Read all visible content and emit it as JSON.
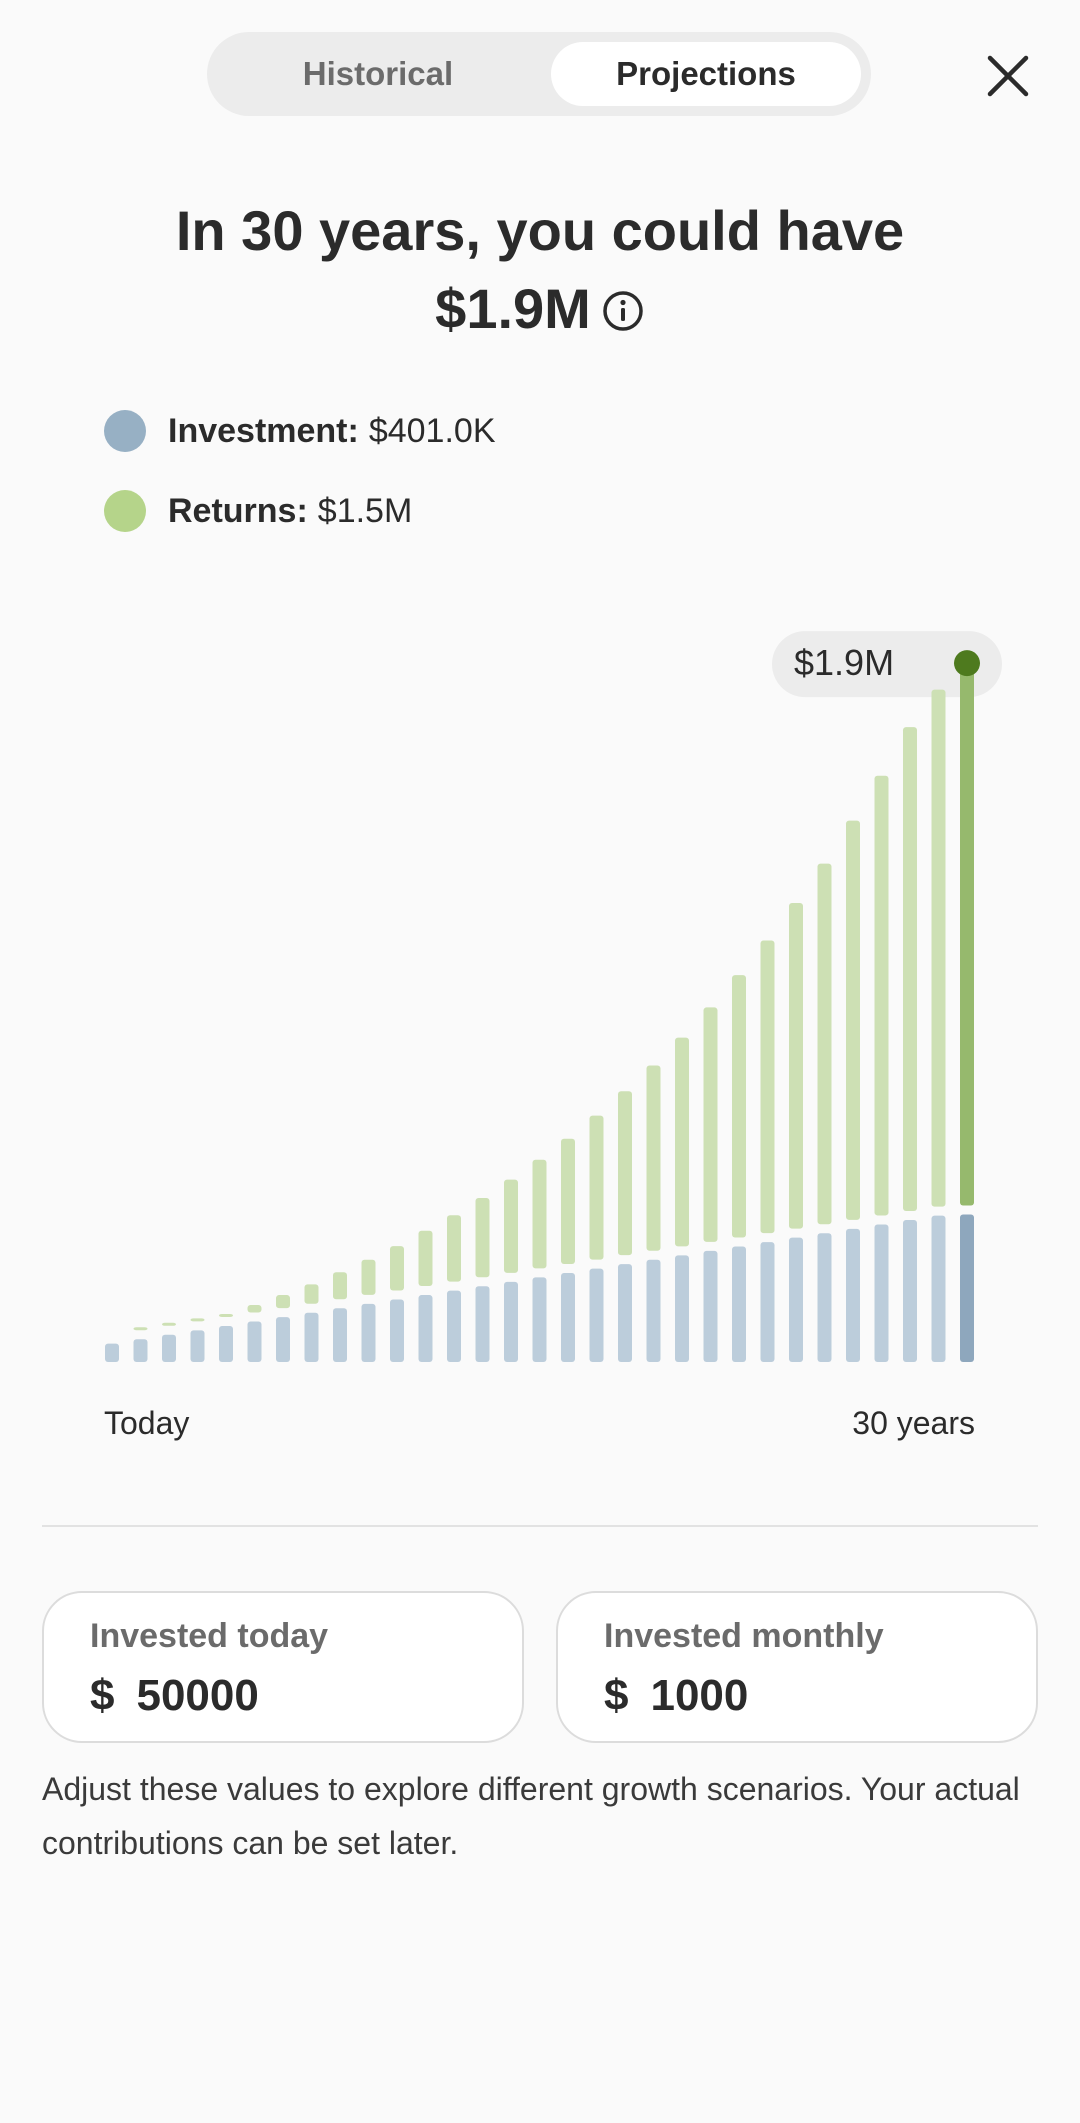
{
  "tabs": {
    "historical": "Historical",
    "projections": "Projections",
    "active": "projections"
  },
  "header": {
    "line1": "In 30 years, you could have",
    "amount": "$1.9M"
  },
  "legend": {
    "investment": {
      "label": "Investment:",
      "value": "$401.0K",
      "color": "#97b0c4"
    },
    "returns": {
      "label": "Returns:",
      "value": "$1.5M",
      "color": "#b5d48a"
    }
  },
  "chart_data": {
    "type": "bar",
    "stacked": true,
    "x_start_label": "Today",
    "x_end_label": "30 years",
    "callout": "$1.9M",
    "highlight_index": 30,
    "y_range": [
      0,
      2050000
    ],
    "series": [
      {
        "name": "Investment",
        "color": "#bccddb",
        "highlight_color": "#8ea7bd",
        "values": [
          50000,
          62000,
          74000,
          86000,
          98000,
          110000,
          122000,
          134000,
          146000,
          158000,
          170000,
          182000,
          194000,
          206000,
          218000,
          230000,
          242000,
          254000,
          266000,
          278000,
          290000,
          302000,
          314000,
          326000,
          338000,
          350000,
          362000,
          374000,
          386000,
          398000,
          401000
        ]
      },
      {
        "name": "Returns",
        "color": "#cde0b4",
        "highlight_color": "#96b96d",
        "values": [
          0,
          2000,
          10000,
          20000,
          30000,
          45000,
          60000,
          77000,
          98000,
          120000,
          145000,
          175000,
          205000,
          240000,
          278000,
          320000,
          365000,
          416000,
          470000,
          528000,
          592000,
          662000,
          738000,
          820000,
          910000,
          1005000,
          1110000,
          1220000,
          1340000,
          1430000,
          1499000
        ]
      }
    ]
  },
  "fields": {
    "today": {
      "label": "Invested today",
      "currency": "$",
      "value": "50000"
    },
    "monthly": {
      "label": "Invested monthly",
      "currency": "$",
      "value": "1000"
    }
  },
  "helper_text": "Adjust these values to explore different growth scenarios. Your actual contributions can be set later."
}
